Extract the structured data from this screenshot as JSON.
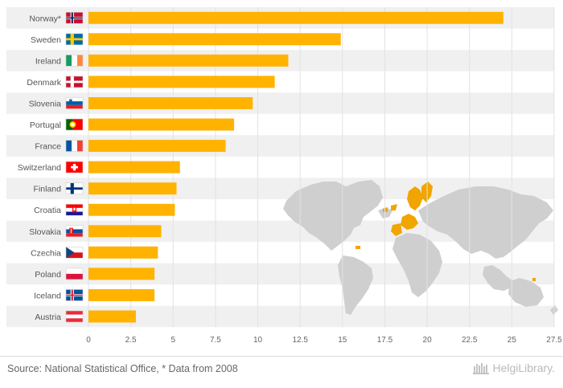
{
  "chart_data": {
    "type": "bar",
    "orientation": "horizontal",
    "categories": [
      "Norway*",
      "Sweden",
      "Ireland",
      "Denmark",
      "Slovenia",
      "Portugal",
      "France",
      "Switzerland",
      "Finland",
      "Croatia",
      "Slovakia",
      "Czechia",
      "Poland",
      "Iceland",
      "Austria"
    ],
    "values": [
      24.5,
      14.9,
      11.8,
      11.0,
      9.7,
      8.6,
      8.1,
      5.4,
      5.2,
      5.1,
      4.3,
      4.1,
      3.9,
      3.9,
      2.8
    ],
    "xticks": [
      "0",
      "2.5",
      "5",
      "7.5",
      "10",
      "12.5",
      "15",
      "17.5",
      "20",
      "22.5",
      "25",
      "27.5"
    ],
    "xlim": [
      0,
      27.5
    ],
    "grid": true,
    "bar_color": "#ffb300",
    "stripe_color": "#f0f0f0",
    "flags": [
      "norway-flag",
      "sweden-flag",
      "ireland-flag",
      "denmark-flag",
      "slovenia-flag",
      "portugal-flag",
      "france-flag",
      "switzerland-flag",
      "finland-flag",
      "croatia-flag",
      "slovakia-flag",
      "czechia-flag",
      "poland-flag",
      "iceland-flag",
      "austria-flag"
    ],
    "background_map": "world-map"
  },
  "footer": {
    "source": "Source: National Statistical Office, * Data from 2008",
    "brand": "HelgiLibrary."
  }
}
